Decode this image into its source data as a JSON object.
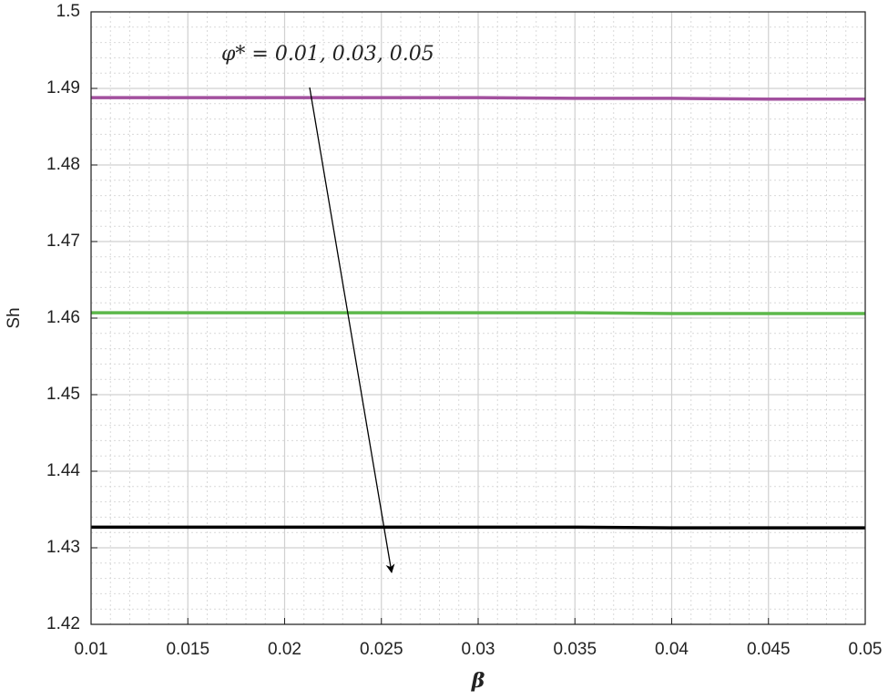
{
  "chart_data": {
    "type": "line",
    "x_label": "β",
    "y_label": "Sh",
    "annotation": "φ* = 0.01, 0.03, 0.05",
    "x": [
      0.01,
      0.015,
      0.02,
      0.025,
      0.03,
      0.035,
      0.04,
      0.045,
      0.05
    ],
    "series": [
      {
        "color": "#a2509e",
        "values": [
          1.4888,
          1.4888,
          1.4888,
          1.4888,
          1.4888,
          1.4887,
          1.4887,
          1.4886,
          1.4886
        ]
      },
      {
        "color": "#5cb84a",
        "values": [
          1.4607,
          1.4607,
          1.4607,
          1.4607,
          1.4607,
          1.4607,
          1.4606,
          1.4606,
          1.4606
        ]
      },
      {
        "color": "#000000",
        "values": [
          1.4327,
          1.4327,
          1.4327,
          1.4327,
          1.4327,
          1.4327,
          1.4326,
          1.4326,
          1.4326
        ]
      }
    ],
    "xlim": [
      0.01,
      0.05
    ],
    "xticks": [
      0.01,
      0.015,
      0.02,
      0.025,
      0.03,
      0.035,
      0.04,
      0.045,
      0.05
    ],
    "ylim": [
      1.42,
      1.5
    ],
    "yticks": [
      1.42,
      1.43,
      1.44,
      1.45,
      1.46,
      1.47,
      1.48,
      1.49,
      1.5
    ],
    "grid": true,
    "minor_grid": true
  }
}
